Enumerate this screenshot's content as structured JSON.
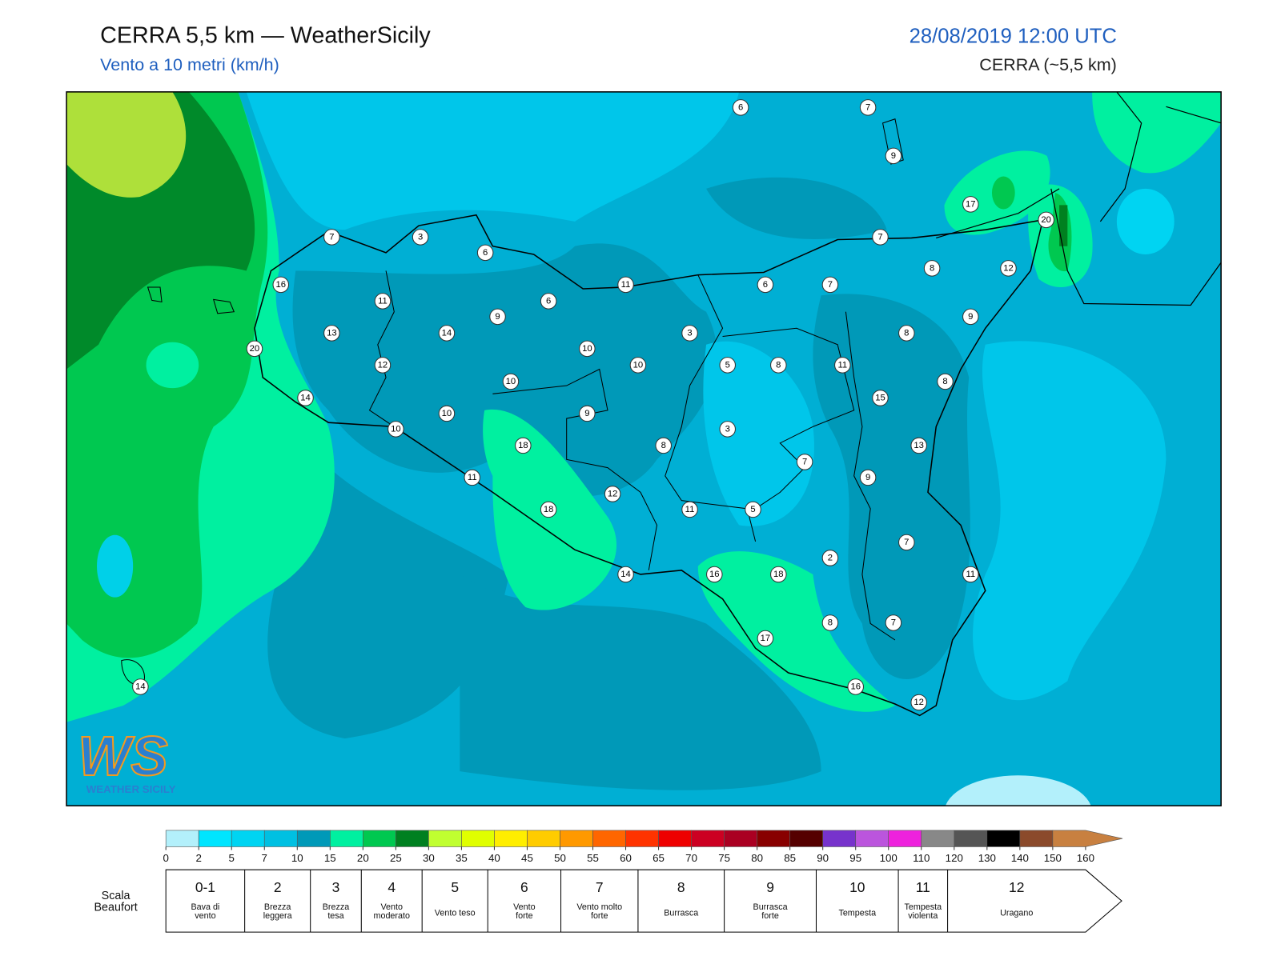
{
  "header": {
    "title": "CERRA 5,5 km — WeatherSicily",
    "subtitle": "Vento a 10 metri (km/h)",
    "datetime": "28/08/2019 12:00 UTC",
    "model": "CERRA (~5,5 km)"
  },
  "map": {
    "wind_labels": [
      6,
      7,
      9,
      17,
      20,
      7,
      3,
      6,
      7,
      16,
      11,
      6,
      7,
      8,
      12,
      11,
      6,
      9,
      9,
      13,
      14,
      3,
      8,
      20,
      10,
      12,
      10,
      5,
      8,
      11,
      10,
      8,
      14,
      15,
      10,
      9,
      10,
      3,
      18,
      8,
      13,
      7,
      11,
      9,
      12,
      18,
      11,
      5,
      7,
      2,
      14,
      16,
      18,
      11,
      8,
      7,
      17,
      16,
      12,
      14
    ]
  },
  "logo": {
    "mark": "WS",
    "text": "WEATHER SICILY"
  },
  "colorbar": {
    "ticks": [
      0,
      2,
      5,
      7,
      10,
      15,
      20,
      25,
      30,
      35,
      40,
      45,
      50,
      55,
      60,
      65,
      70,
      75,
      80,
      85,
      90,
      95,
      100,
      110,
      120,
      130,
      140,
      150,
      160
    ],
    "colors": [
      "#b3f0fb",
      "#00e5ff",
      "#00d4f2",
      "#00c0e2",
      "#0099b8",
      "#00f0a0",
      "#00c850",
      "#008020",
      "#c0ff30",
      "#e0ff00",
      "#ffee00",
      "#ffcc00",
      "#ff9900",
      "#ff6600",
      "#ff3300",
      "#ee0000",
      "#cc0022",
      "#aa0022",
      "#880000",
      "#550000",
      "#7733cc",
      "#bb55dd",
      "#ee22dd",
      "#888888",
      "#555555",
      "#000000",
      "#8b4a2b",
      "#c88040"
    ]
  },
  "beaufort": {
    "label_lines": [
      "Scala",
      "Beaufort"
    ],
    "levels": [
      {
        "force": "0-1",
        "lines": [
          "Bava di",
          "vento"
        ]
      },
      {
        "force": "2",
        "lines": [
          "Brezza",
          "leggera"
        ]
      },
      {
        "force": "3",
        "lines": [
          "Brezza",
          "tesa"
        ]
      },
      {
        "force": "4",
        "lines": [
          "Vento",
          "moderato"
        ]
      },
      {
        "force": "5",
        "lines": [
          "Vento teso"
        ]
      },
      {
        "force": "6",
        "lines": [
          "Vento",
          "forte"
        ]
      },
      {
        "force": "7",
        "lines": [
          "Vento molto",
          "forte"
        ]
      },
      {
        "force": "8",
        "lines": [
          "Burrasca"
        ]
      },
      {
        "force": "9",
        "lines": [
          "Burrasca",
          "forte"
        ]
      },
      {
        "force": "10",
        "lines": [
          "Tempesta"
        ]
      },
      {
        "force": "11",
        "lines": [
          "Tempesta",
          "violenta"
        ]
      },
      {
        "force": "12",
        "lines": [
          "Uragano"
        ]
      }
    ]
  }
}
